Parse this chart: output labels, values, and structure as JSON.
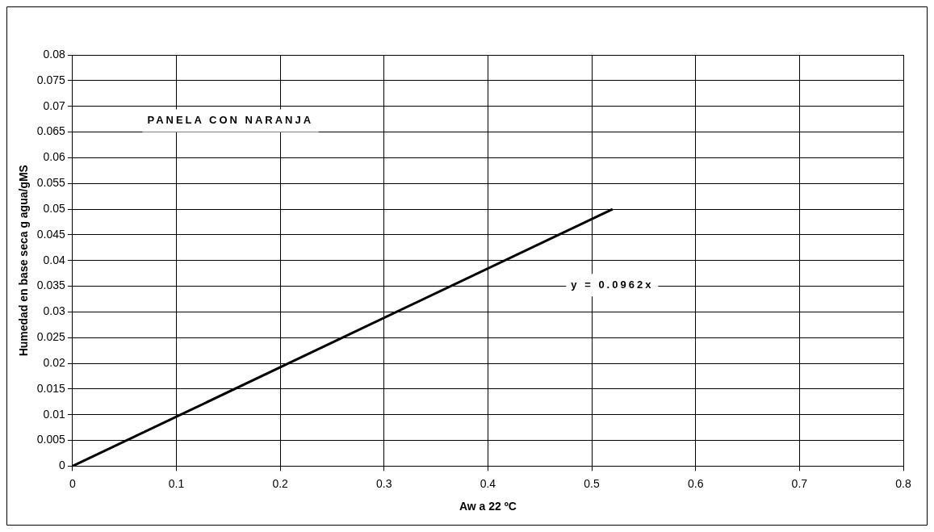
{
  "chart_data": {
    "type": "line",
    "xlabel": "Aw a 22 ºC",
    "ylabel": "Humedad en base seca g agua/gMS",
    "x": [
      0,
      0.52
    ],
    "series": [
      {
        "color": "#000000",
        "values": [
          0,
          0.05
        ]
      }
    ],
    "xlim": [
      0,
      0.8
    ],
    "xticks": [
      0,
      0.1,
      0.2,
      0.3,
      0.4,
      0.5,
      0.6,
      0.7,
      0.8
    ],
    "ylim": [
      0,
      0.08
    ],
    "yticks": [
      0,
      0.005,
      0.01,
      0.015,
      0.02,
      0.025,
      0.03,
      0.035,
      0.04,
      0.045,
      0.05,
      0.055,
      0.06,
      0.065,
      0.07,
      0.075,
      0.08
    ],
    "grid": true,
    "legend": false,
    "marker": "none",
    "line_style": "solid",
    "annotations": [
      "PANELA CON NARANJA",
      "y = 0.0962x"
    ]
  }
}
